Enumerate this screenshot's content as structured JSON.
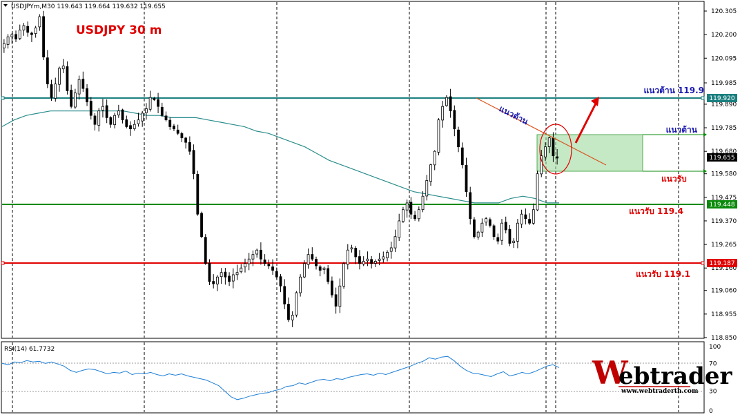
{
  "header": {
    "symbol_info": "USDJPYm,M30  119.643 119.664 119.632 119.655"
  },
  "chart_title": "USDJPY 30 m",
  "colors": {
    "up_candle": "#000000",
    "down_candle": "#000000",
    "ma": "#2a8c8c",
    "rsi": "#1e7fd6",
    "resistance_major": "#1a7f7f",
    "support_mid": "#0a8a0a",
    "support_low": "#e00000",
    "zone_fill": "#9fd89f",
    "annotation_blue": "#1a1ab0",
    "annotation_red": "#e00000"
  },
  "price_axis": {
    "ticks": [
      "120.305",
      "120.200",
      "120.095",
      "119.985",
      "119.890",
      "119.785",
      "119.680",
      "119.580",
      "119.475",
      "119.370",
      "119.265",
      "119.160",
      "119.060",
      "118.955",
      "118.850"
    ],
    "current_price": "119.655"
  },
  "levels": [
    {
      "name": "resistance",
      "price": 119.92,
      "tag": "119.920",
      "label": "แนวต้าน 119.9",
      "color": "#1a7f7f",
      "label_color": "#1a1ab0"
    },
    {
      "name": "support-mid",
      "price": 119.448,
      "tag": "119.448",
      "label": "แนวรับ 119.4",
      "color": "#0a8a0a",
      "label_color": "#e00000"
    },
    {
      "name": "support-low",
      "price": 119.187,
      "tag": "119.187",
      "label": "แนวรับ 119.1",
      "color": "#e00000",
      "label_color": "#e00000"
    }
  ],
  "annotations": {
    "trend_label": "แนวต้าน",
    "zone_top_label": "แนวต้าน",
    "zone_bottom_label": "แนวรับ"
  },
  "rsi_panel": {
    "label": "RSI(14) 61.7732",
    "ticks": [
      "100",
      "70",
      "30",
      "0"
    ]
  },
  "logo": {
    "text": "ebtrader",
    "initial": "W",
    "url": "www.webtraderth.com"
  },
  "chart_data": [
    {
      "type": "candlestick",
      "title": "USDJPY 30 m",
      "timeframe": "M30",
      "ylim": [
        118.85,
        120.305
      ],
      "close_series": [
        120.16,
        120.19,
        120.2,
        120.18,
        120.22,
        120.24,
        120.21,
        120.2,
        120.23,
        120.28,
        120.1,
        119.98,
        119.92,
        119.98,
        120.05,
        120.06,
        119.95,
        119.88,
        119.94,
        120.0,
        119.96,
        119.9,
        119.84,
        119.8,
        119.86,
        119.88,
        119.83,
        119.8,
        119.84,
        119.86,
        119.82,
        119.79,
        119.78,
        119.8,
        119.82,
        119.85,
        119.87,
        119.92,
        119.91,
        119.88,
        119.84,
        119.82,
        119.79,
        119.78,
        119.76,
        119.74,
        119.72,
        119.68,
        119.58,
        119.4,
        119.3,
        119.18,
        119.1,
        119.09,
        119.12,
        119.14,
        119.12,
        119.1,
        119.13,
        119.14,
        119.16,
        119.18,
        119.2,
        119.22,
        119.24,
        119.2,
        119.18,
        119.17,
        119.15,
        119.12,
        119.08,
        119.0,
        118.93,
        118.95,
        119.05,
        119.12,
        119.18,
        119.22,
        119.2,
        119.17,
        119.15,
        119.16,
        119.1,
        119.04,
        118.99,
        119.08,
        119.18,
        119.24,
        119.25,
        119.21,
        119.18,
        119.19,
        119.2,
        119.18,
        119.19,
        119.2,
        119.21,
        119.23,
        119.25,
        119.3,
        119.37,
        119.42,
        119.45,
        119.4,
        119.38,
        119.42,
        119.48,
        119.55,
        119.62,
        119.68,
        119.82,
        119.88,
        119.92,
        119.86,
        119.78,
        119.7,
        119.62,
        119.5,
        119.38,
        119.3,
        119.32,
        119.36,
        119.38,
        119.35,
        119.3,
        119.28,
        119.36,
        119.33,
        119.27,
        119.28,
        119.36,
        119.4,
        119.38,
        119.36,
        119.42,
        119.58,
        119.66,
        119.7,
        119.74,
        119.66,
        119.65
      ],
      "ma_series": [
        119.79,
        119.82,
        119.84,
        119.85,
        119.86,
        119.86,
        119.86,
        119.86,
        119.86,
        119.86,
        119.86,
        119.85,
        119.84,
        119.84,
        119.83,
        119.83,
        119.83,
        119.82,
        119.81,
        119.8,
        119.79,
        119.77,
        119.76,
        119.74,
        119.72,
        119.7,
        119.67,
        119.64,
        119.62,
        119.6,
        119.58,
        119.56,
        119.54,
        119.52,
        119.5,
        119.49,
        119.48,
        119.47,
        119.46,
        119.45,
        119.45,
        119.45,
        119.47,
        119.48,
        119.47,
        119.45,
        119.45
      ],
      "rsi_series": [
        70,
        68,
        72,
        71,
        74,
        72,
        73,
        70,
        72,
        69,
        66,
        60,
        57,
        60,
        62,
        61,
        58,
        55,
        57,
        56,
        59,
        54,
        56,
        55,
        57,
        54,
        52,
        55,
        53,
        55,
        52,
        50,
        48,
        46,
        42,
        38,
        30,
        22,
        18,
        20,
        23,
        25,
        27,
        28,
        31,
        33,
        37,
        38,
        42,
        40,
        43,
        46,
        47,
        45,
        48,
        47,
        50,
        52,
        54,
        55,
        53,
        56,
        54,
        57,
        60,
        63,
        66,
        70,
        73,
        78,
        76,
        79,
        80,
        74,
        66,
        60,
        56,
        55,
        53,
        51,
        55,
        58,
        52,
        54,
        57,
        55,
        58,
        62,
        66,
        68,
        64
      ],
      "rsi_ylim": [
        0,
        100
      ]
    }
  ]
}
